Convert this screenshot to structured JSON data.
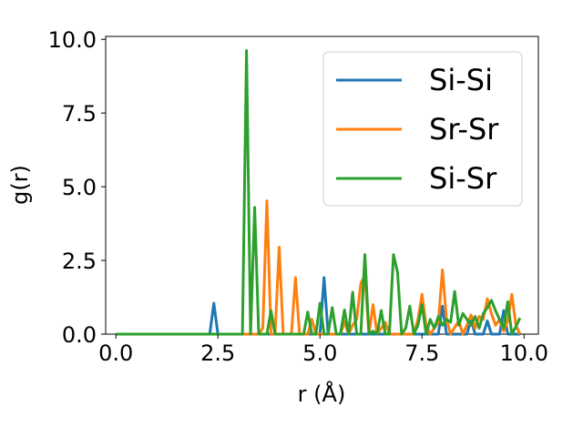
{
  "chart_data": {
    "type": "line",
    "xlabel": "r (Å)",
    "ylabel": "g(r)",
    "xlim": [
      -0.25,
      10.35
    ],
    "ylim": [
      0,
      10.1
    ],
    "xticks": [
      "0.0",
      "2.5",
      "5.0",
      "7.5",
      "10.0"
    ],
    "xtick_values": [
      0,
      2.5,
      5,
      7.5,
      10
    ],
    "yticks": [
      "0.0",
      "2.5",
      "5.0",
      "7.5",
      "10.0"
    ],
    "ytick_values": [
      0,
      2.5,
      5,
      7.5,
      10
    ],
    "grid": false,
    "legend_position": "top-right",
    "series": [
      {
        "name": "Si-Si",
        "color": "#1f77b4",
        "points": [
          [
            0,
            0
          ],
          [
            2.3,
            0
          ],
          [
            2.4,
            1.05
          ],
          [
            2.5,
            0
          ],
          [
            5.0,
            0
          ],
          [
            5.1,
            1.92
          ],
          [
            5.2,
            0
          ],
          [
            7.9,
            0
          ],
          [
            8.0,
            0.95
          ],
          [
            8.1,
            0
          ],
          [
            8.6,
            0
          ],
          [
            8.7,
            0.5
          ],
          [
            8.8,
            0
          ],
          [
            9.0,
            0
          ],
          [
            9.1,
            0.45
          ],
          [
            9.2,
            0
          ],
          [
            9.4,
            0
          ],
          [
            9.5,
            0.8
          ],
          [
            9.6,
            0
          ],
          [
            9.9,
            0
          ]
        ]
      },
      {
        "name": "Sr-Sr",
        "color": "#ff7f0e",
        "points": [
          [
            0,
            0
          ],
          [
            3.5,
            0
          ],
          [
            3.6,
            0.2
          ],
          [
            3.7,
            4.52
          ],
          [
            3.8,
            0
          ],
          [
            3.9,
            0
          ],
          [
            4.0,
            2.95
          ],
          [
            4.1,
            0
          ],
          [
            4.3,
            0
          ],
          [
            4.4,
            1.92
          ],
          [
            4.5,
            0
          ],
          [
            4.7,
            0
          ],
          [
            4.8,
            0.5
          ],
          [
            4.9,
            0
          ],
          [
            5.5,
            0
          ],
          [
            5.6,
            0.42
          ],
          [
            5.7,
            0
          ],
          [
            5.8,
            0.3
          ],
          [
            5.9,
            0.5
          ],
          [
            6.0,
            1.72
          ],
          [
            6.1,
            2.0
          ],
          [
            6.2,
            0
          ],
          [
            6.3,
            1.0
          ],
          [
            6.4,
            0
          ],
          [
            6.6,
            0.4
          ],
          [
            6.7,
            0
          ],
          [
            7.3,
            0
          ],
          [
            7.4,
            0.5
          ],
          [
            7.5,
            1.35
          ],
          [
            7.6,
            0.3
          ],
          [
            7.7,
            0
          ],
          [
            7.9,
            0.4
          ],
          [
            8.0,
            2.18
          ],
          [
            8.1,
            0.5
          ],
          [
            8.2,
            0
          ],
          [
            8.4,
            0.45
          ],
          [
            8.5,
            0
          ],
          [
            8.6,
            0.3
          ],
          [
            8.7,
            0.65
          ],
          [
            8.8,
            0.2
          ],
          [
            8.9,
            0.6
          ],
          [
            9.0,
            0.5
          ],
          [
            9.1,
            1.2
          ],
          [
            9.2,
            0.7
          ],
          [
            9.3,
            0.3
          ],
          [
            9.4,
            0.5
          ],
          [
            9.5,
            0.1
          ],
          [
            9.6,
            0.45
          ],
          [
            9.7,
            1.35
          ],
          [
            9.8,
            0.3
          ],
          [
            9.9,
            0
          ]
        ]
      },
      {
        "name": "Si-Sr",
        "color": "#2ca02c",
        "points": [
          [
            0,
            0
          ],
          [
            3.1,
            0
          ],
          [
            3.2,
            9.62
          ],
          [
            3.3,
            0
          ],
          [
            3.4,
            4.3
          ],
          [
            3.5,
            0
          ],
          [
            3.7,
            0
          ],
          [
            3.8,
            0.8
          ],
          [
            3.9,
            0
          ],
          [
            4.6,
            0
          ],
          [
            4.7,
            0.75
          ],
          [
            4.8,
            0
          ],
          [
            4.9,
            0
          ],
          [
            5.0,
            1.05
          ],
          [
            5.1,
            0
          ],
          [
            5.2,
            0
          ],
          [
            5.3,
            0.9
          ],
          [
            5.4,
            0
          ],
          [
            5.5,
            0
          ],
          [
            5.6,
            0.82
          ],
          [
            5.7,
            0
          ],
          [
            5.8,
            1.42
          ],
          [
            5.9,
            0
          ],
          [
            6.0,
            0
          ],
          [
            6.1,
            2.7
          ],
          [
            6.2,
            0
          ],
          [
            6.3,
            0.1
          ],
          [
            6.4,
            0
          ],
          [
            6.5,
            0.8
          ],
          [
            6.6,
            0
          ],
          [
            6.7,
            0
          ],
          [
            6.8,
            2.7
          ],
          [
            6.9,
            2.1
          ],
          [
            7.0,
            0
          ],
          [
            7.1,
            0.2
          ],
          [
            7.2,
            0.95
          ],
          [
            7.3,
            0
          ],
          [
            7.4,
            0.3
          ],
          [
            7.5,
            1.0
          ],
          [
            7.6,
            0
          ],
          [
            7.7,
            0.5
          ],
          [
            7.8,
            0.2
          ],
          [
            7.9,
            0.6
          ],
          [
            8.0,
            0.3
          ],
          [
            8.1,
            0.5
          ],
          [
            8.2,
            0.4
          ],
          [
            8.3,
            1.45
          ],
          [
            8.4,
            0.3
          ],
          [
            8.5,
            0.7
          ],
          [
            8.6,
            0.5
          ],
          [
            8.7,
            0.3
          ],
          [
            8.8,
            0.6
          ],
          [
            8.9,
            0.2
          ],
          [
            9.0,
            0.7
          ],
          [
            9.1,
            0.9
          ],
          [
            9.2,
            1.15
          ],
          [
            9.3,
            0.8
          ],
          [
            9.4,
            0.5
          ],
          [
            9.5,
            0.2
          ],
          [
            9.6,
            1.1
          ],
          [
            9.7,
            0
          ],
          [
            9.8,
            0.25
          ],
          [
            9.9,
            0.55
          ]
        ]
      }
    ]
  }
}
